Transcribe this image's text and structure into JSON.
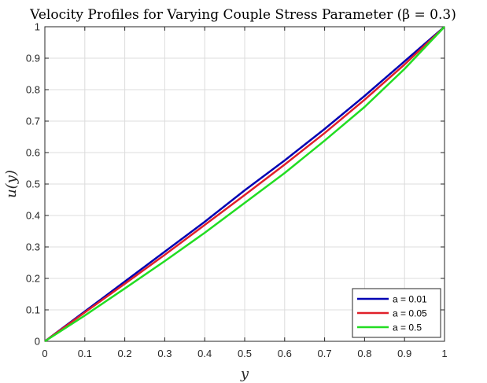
{
  "chart_data": {
    "type": "line",
    "title": "Velocity Profiles for Varying Couple Stress Parameter (β = 0.3)",
    "xlabel": "y",
    "ylabel": "u(y)",
    "xlim": [
      0,
      1
    ],
    "ylim": [
      0,
      1
    ],
    "grid": true,
    "legend_position": "bottom-right",
    "x_ticks": [
      "0",
      "0.1",
      "0.2",
      "0.3",
      "0.4",
      "0.5",
      "0.6",
      "0.7",
      "0.8",
      "0.9",
      "1"
    ],
    "y_ticks": [
      "0",
      "0.1",
      "0.2",
      "0.3",
      "0.4",
      "0.5",
      "0.6",
      "0.7",
      "0.8",
      "0.9",
      "1"
    ],
    "x": [
      0,
      0.1,
      0.2,
      0.3,
      0.4,
      0.5,
      0.6,
      0.7,
      0.8,
      0.9,
      1.0
    ],
    "series": [
      {
        "name": "a = 0.01",
        "color": "#0000b3",
        "values": [
          0,
          0.095,
          0.19,
          0.285,
          0.38,
          0.48,
          0.575,
          0.675,
          0.78,
          0.89,
          1.0
        ]
      },
      {
        "name": "a = 0.05",
        "color": "#e0202a",
        "values": [
          0,
          0.092,
          0.183,
          0.275,
          0.37,
          0.465,
          0.562,
          0.662,
          0.768,
          0.88,
          1.0
        ]
      },
      {
        "name": "a = 0.5",
        "color": "#22dd22",
        "values": [
          0,
          0.082,
          0.168,
          0.255,
          0.345,
          0.44,
          0.535,
          0.638,
          0.745,
          0.866,
          1.0
        ]
      }
    ]
  }
}
